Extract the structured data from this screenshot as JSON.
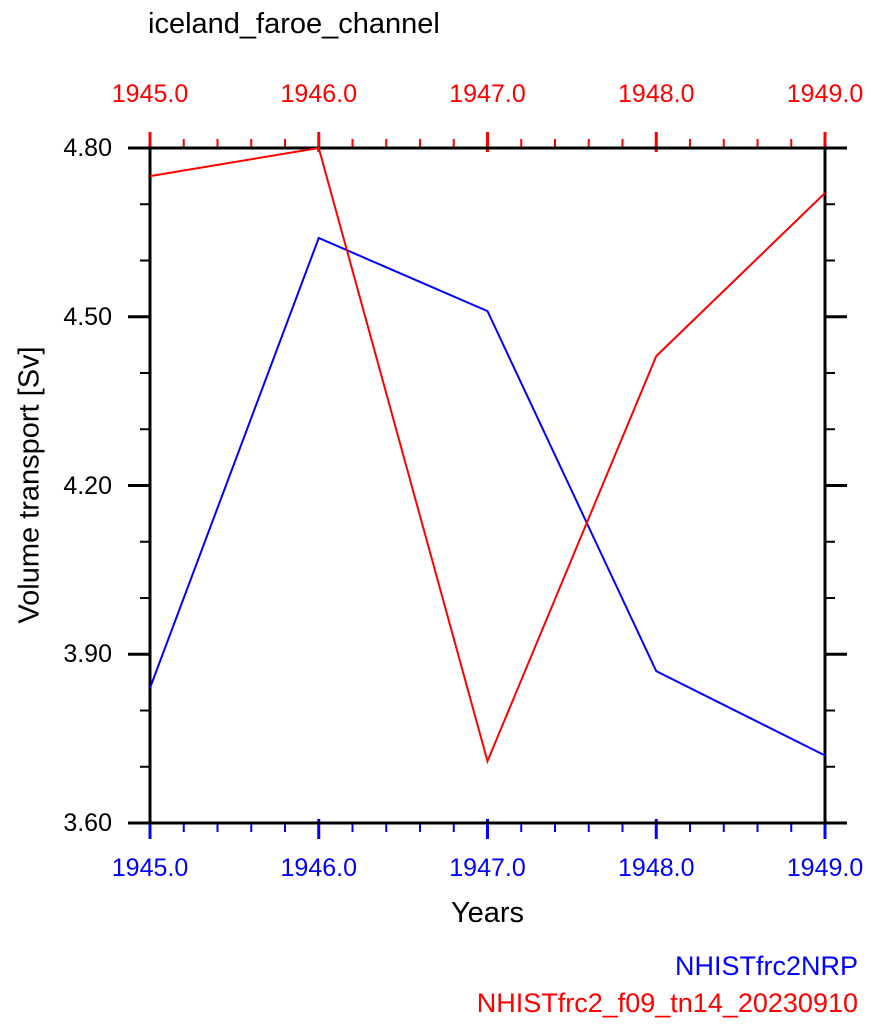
{
  "title": "iceland_faroe_channel",
  "chart_data": {
    "type": "line",
    "title": "iceland_faroe_channel",
    "xlabel": "Years",
    "ylabel": "Volume transport [Sv]",
    "x": [
      1945,
      1946,
      1947,
      1948,
      1949
    ],
    "series": [
      {
        "name": "NHISTfrc2NRP",
        "color": "#0000ff",
        "values": [
          3.84,
          4.64,
          4.51,
          3.87,
          3.72
        ]
      },
      {
        "name": "NHISTfrc2_f09_tn14_20230910",
        "color": "#ff0000",
        "values": [
          4.75,
          4.8,
          3.71,
          4.43,
          4.72
        ]
      }
    ],
    "xlim": [
      1945,
      1949
    ],
    "ylim": [
      3.6,
      4.8
    ],
    "grid": false,
    "legend_position": "bottom-right"
  },
  "axes": {
    "x_major_ticks": [
      1945,
      1946,
      1947,
      1948,
      1949
    ],
    "x_tick_labels": [
      "1945.0",
      "1946.0",
      "1947.0",
      "1948.0",
      "1949.0"
    ],
    "x_minor_step": 0.2,
    "y_major_ticks": [
      3.6,
      3.9,
      4.2,
      4.5,
      4.8
    ],
    "y_tick_labels": [
      "3.60",
      "3.90",
      "4.20",
      "4.50",
      "4.80"
    ],
    "y_minor_step": 0.1,
    "top_axis_color": "#ff0000",
    "bottom_axis_color": "#0000ff",
    "side_axis_color": "#000000",
    "y_tick_label_color": "#000000"
  }
}
